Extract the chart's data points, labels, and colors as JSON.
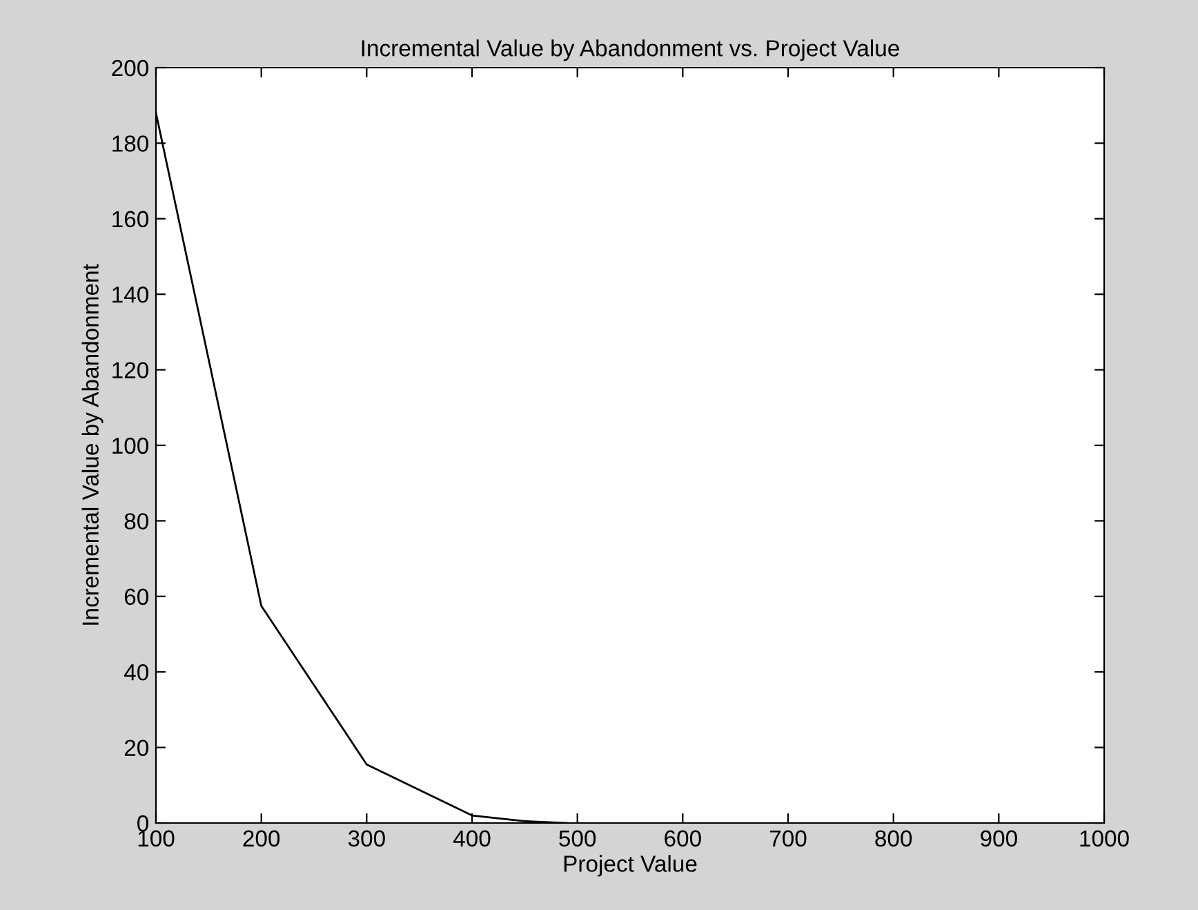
{
  "chart_data": {
    "type": "line",
    "title": "Incremental Value by Abandonment vs. Project Value",
    "xlabel": "Project Value",
    "ylabel": "Incremental Value by Abandonment",
    "x": [
      100,
      200,
      300,
      400,
      450,
      490
    ],
    "series": [
      {
        "color": "#000000",
        "values": [
          188,
          57.5,
          15.5,
          2,
          0.5,
          0
        ]
      }
    ],
    "xlim": [
      100,
      1000
    ],
    "xticks": [
      100,
      200,
      300,
      400,
      500,
      600,
      700,
      800,
      900,
      1000
    ],
    "ylim": [
      0,
      200
    ],
    "yticks": [
      0,
      20,
      40,
      60,
      80,
      100,
      120,
      140,
      160,
      180,
      200
    ],
    "grid": false,
    "legend": false,
    "marker": "none",
    "line_style": "solid"
  }
}
